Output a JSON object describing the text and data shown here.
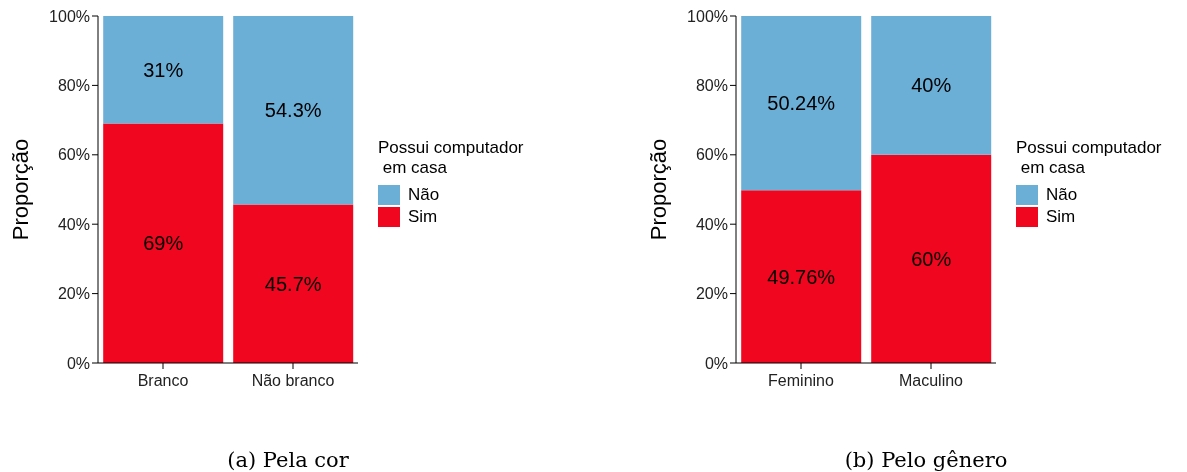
{
  "chart_data": [
    {
      "type": "bar",
      "stacked": true,
      "categories": [
        "Branco",
        "Não branco"
      ],
      "ylabel": "Proporção",
      "legend_title": "Possui computador\n em casa",
      "legend": "right",
      "ylim": [
        0,
        100
      ],
      "yticks": [
        {
          "value": 0,
          "label": "0%"
        },
        {
          "value": 20,
          "label": "20%"
        },
        {
          "value": 40,
          "label": "40%"
        },
        {
          "value": 60,
          "label": "60%"
        },
        {
          "value": 80,
          "label": "80%"
        },
        {
          "value": 100,
          "label": "100%"
        }
      ],
      "grid": false,
      "series": [
        {
          "name": "Sim",
          "color": "#f0061e",
          "values": [
            69,
            45.7
          ],
          "value_labels": [
            "69%",
            "45.7%"
          ]
        },
        {
          "name": "Não",
          "color": "#6baed6",
          "values": [
            31,
            54.3
          ],
          "value_labels": [
            "31%",
            "54.3%"
          ]
        }
      ],
      "annotations": [
        "(a) Pela cor"
      ]
    },
    {
      "type": "bar",
      "stacked": true,
      "categories": [
        "Feminino",
        "Maculino"
      ],
      "ylabel": "Proporção",
      "legend_title": "Possui computador\n em casa",
      "legend": "right",
      "ylim": [
        0,
        100
      ],
      "yticks": [
        {
          "value": 0,
          "label": "0%"
        },
        {
          "value": 20,
          "label": "20%"
        },
        {
          "value": 40,
          "label": "40%"
        },
        {
          "value": 60,
          "label": "60%"
        },
        {
          "value": 80,
          "label": "80%"
        },
        {
          "value": 100,
          "label": "100%"
        }
      ],
      "grid": false,
      "series": [
        {
          "name": "Sim",
          "color": "#f0061e",
          "values": [
            49.76,
            60
          ],
          "value_labels": [
            "49.76%",
            "60%"
          ]
        },
        {
          "name": "Não",
          "color": "#6baed6",
          "values": [
            50.24,
            40
          ],
          "value_labels": [
            "50.24%",
            "40%"
          ]
        }
      ],
      "annotations": [
        "(b) Pelo gênero"
      ]
    }
  ]
}
